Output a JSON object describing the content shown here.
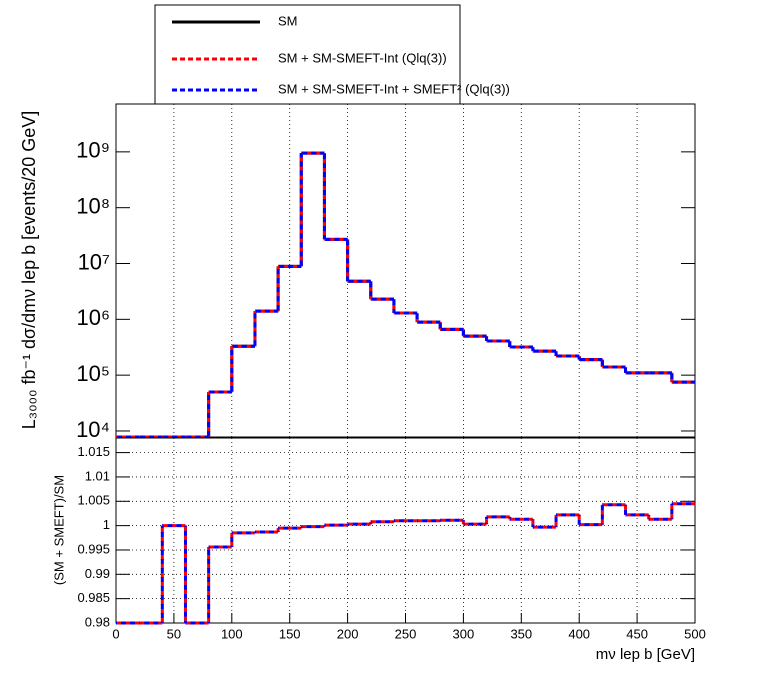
{
  "chart_data": [
    {
      "type": "histogram",
      "y_label": "L₃₀₀₀ fb⁻¹ dσ/dmν lep b [events/20 GeV]",
      "log_y": true,
      "grid_x": true,
      "bins": [
        0,
        20,
        40,
        60,
        80,
        100,
        120,
        140,
        160,
        180,
        200,
        220,
        240,
        260,
        280,
        300,
        320,
        340,
        360,
        380,
        400,
        420,
        440,
        460,
        480,
        500
      ],
      "xlim": [
        0,
        500
      ],
      "ylim": [
        7800,
        7200000000
      ],
      "yticks": [
        {
          "value": 10000,
          "label": "10⁴"
        },
        {
          "value": 100000,
          "label": "10⁵"
        },
        {
          "value": 1000000,
          "label": "10⁶"
        },
        {
          "value": 10000000,
          "label": "10⁷"
        },
        {
          "value": 100000000,
          "label": "10⁸"
        },
        {
          "value": 1000000000,
          "label": "10⁹"
        }
      ],
      "series": [
        {
          "name": "SM",
          "color": "#000000",
          "dashed": false,
          "values": [
            0,
            0,
            0,
            0,
            50000,
            330000,
            1400000,
            8900000,
            950000000,
            27000000,
            4800000,
            2300000,
            1300000,
            890000,
            660000,
            500000,
            410000,
            320000,
            270000,
            220000,
            190000,
            140000,
            110000,
            110000,
            75000
          ]
        },
        {
          "name": "SM + SM-SMEFT-Int (Qlq(3))",
          "color": "#ff0000",
          "dashed": true,
          "values": [
            0,
            0,
            0,
            0,
            50000,
            330000,
            1400000,
            8900000,
            950000000,
            27000000,
            4800000,
            2300000,
            1300000,
            890000,
            660000,
            500000,
            410000,
            320000,
            270000,
            220000,
            190000,
            140000,
            110000,
            110000,
            75000
          ]
        },
        {
          "name": "SM + SM-SMEFT-Int + SMEFT² (Qlq(3))",
          "color": "#0000ff",
          "dashed": true,
          "values": [
            0,
            0,
            0,
            0,
            50000,
            330000,
            1400000,
            8900000,
            950000000,
            27000000,
            4800000,
            2300000,
            1300000,
            890000,
            660000,
            500000,
            410000,
            320000,
            270000,
            220000,
            190000,
            140000,
            110000,
            110000,
            75000
          ]
        }
      ]
    },
    {
      "type": "histogram",
      "x_label": "mν lep b [GeV]",
      "y_label": "(SM + SMEFT)/SM",
      "log_y": false,
      "grid_x": true,
      "grid_y": true,
      "bins": [
        0,
        20,
        40,
        60,
        80,
        100,
        120,
        140,
        160,
        180,
        200,
        220,
        240,
        260,
        280,
        300,
        320,
        340,
        360,
        380,
        400,
        420,
        440,
        460,
        480,
        500
      ],
      "xlim": [
        0,
        500
      ],
      "xticks": [
        0,
        50,
        100,
        150,
        200,
        250,
        300,
        350,
        400,
        450,
        500
      ],
      "ylim": [
        0.98,
        1.018
      ],
      "yticks": [
        0.98,
        0.985,
        0.99,
        0.995,
        1,
        1.005,
        1.01,
        1.015
      ],
      "series": [
        {
          "color": "#ff0000",
          "dashed": true,
          "values": [
            0.98,
            0.98,
            1.0,
            0.98,
            0.9956,
            0.9985,
            0.9987,
            0.9995,
            0.9998,
            1.0001,
            1.0003,
            1.0008,
            1.001,
            1.001,
            1.0011,
            1.0003,
            1.0018,
            1.0013,
            0.9997,
            1.0022,
            1.0002,
            1.0043,
            1.0022,
            1.0013,
            1.0045
          ]
        },
        {
          "color": "#0000ff",
          "dashed": true,
          "values": [
            0.98,
            0.98,
            1.0,
            0.98,
            0.9956,
            0.9985,
            0.9987,
            0.9995,
            0.9998,
            1.0001,
            1.0003,
            1.0008,
            1.001,
            1.001,
            1.0011,
            1.0003,
            1.0018,
            1.0013,
            0.9997,
            1.0022,
            1.0002,
            1.0043,
            1.0022,
            1.0013,
            1.0045
          ]
        }
      ]
    }
  ]
}
